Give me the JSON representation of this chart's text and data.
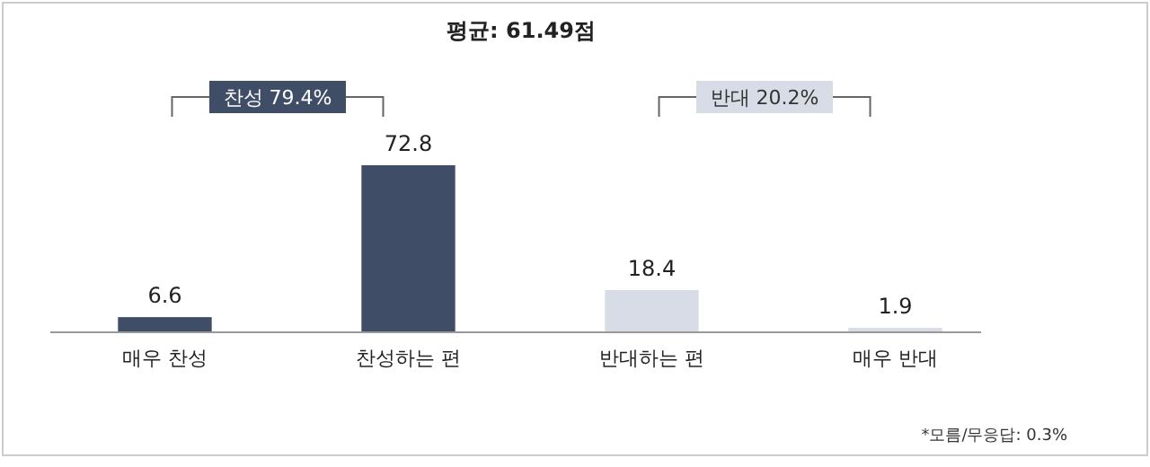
{
  "chart_data": {
    "type": "bar",
    "title": "평균: 61.49점",
    "categories": [
      "매우 찬성",
      "찬성하는 편",
      "반대하는 편",
      "매우 반대"
    ],
    "values": [
      6.6,
      72.8,
      18.4,
      1.9
    ],
    "colors": [
      "#3f4d66",
      "#3f4d66",
      "#d7dce6",
      "#d7dce6"
    ],
    "data_labels": true,
    "annotations": [
      "찬성 79.4%",
      "반대 20.2%",
      "*모름/무응답: 0.3%"
    ]
  }
}
